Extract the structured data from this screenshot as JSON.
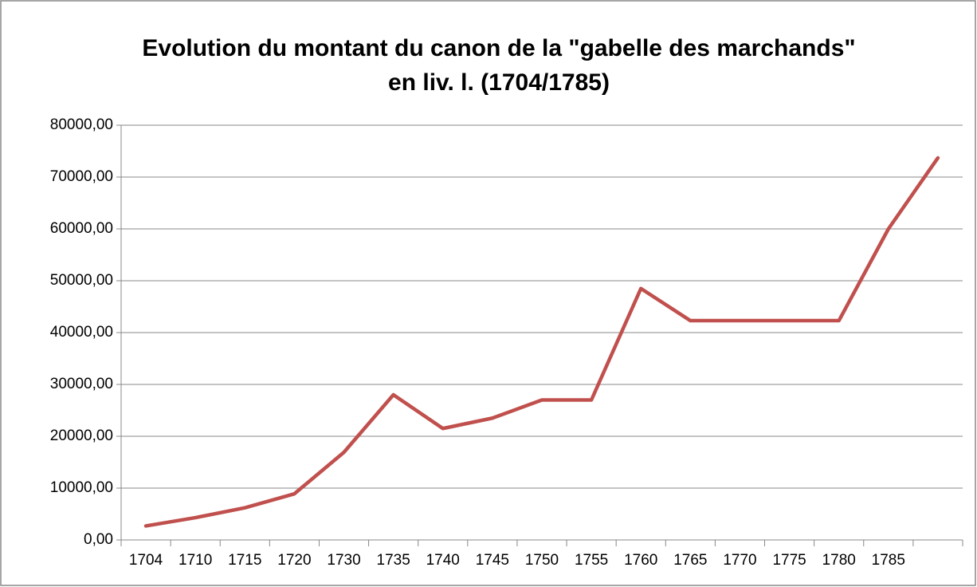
{
  "chart_data": {
    "type": "line",
    "title": [
      "Evolution du montant du canon de la \"gabelle des marchands\"",
      "en liv. l. (1704/1785)"
    ],
    "categories": [
      "1704",
      "1710",
      "1715",
      "1720",
      "1730",
      "1735",
      "1740",
      "1745",
      "1750",
      "1755",
      "1760",
      "1765",
      "1770",
      "1775",
      "1780",
      "1785",
      null
    ],
    "series": [
      {
        "color": "#c0504d",
        "values": [
          2700,
          4300,
          6200,
          8900,
          16900,
          28000,
          21500,
          23500,
          27000,
          27000,
          48500,
          42300,
          42300,
          42300,
          42300,
          60000,
          73700
        ]
      }
    ],
    "ylim": [
      0,
      80000
    ],
    "yticks": [
      {
        "value": 0,
        "label": "0,00"
      },
      {
        "value": 10000,
        "label": "10000,00"
      },
      {
        "value": 20000,
        "label": "20000,00"
      },
      {
        "value": 30000,
        "label": "30000,00"
      },
      {
        "value": 40000,
        "label": "40000,00"
      },
      {
        "value": 50000,
        "label": "50000,00"
      },
      {
        "value": 60000,
        "label": "60000,00"
      },
      {
        "value": 70000,
        "label": "70000,00"
      },
      {
        "value": 80000,
        "label": "80000,00"
      }
    ],
    "grid": true
  }
}
